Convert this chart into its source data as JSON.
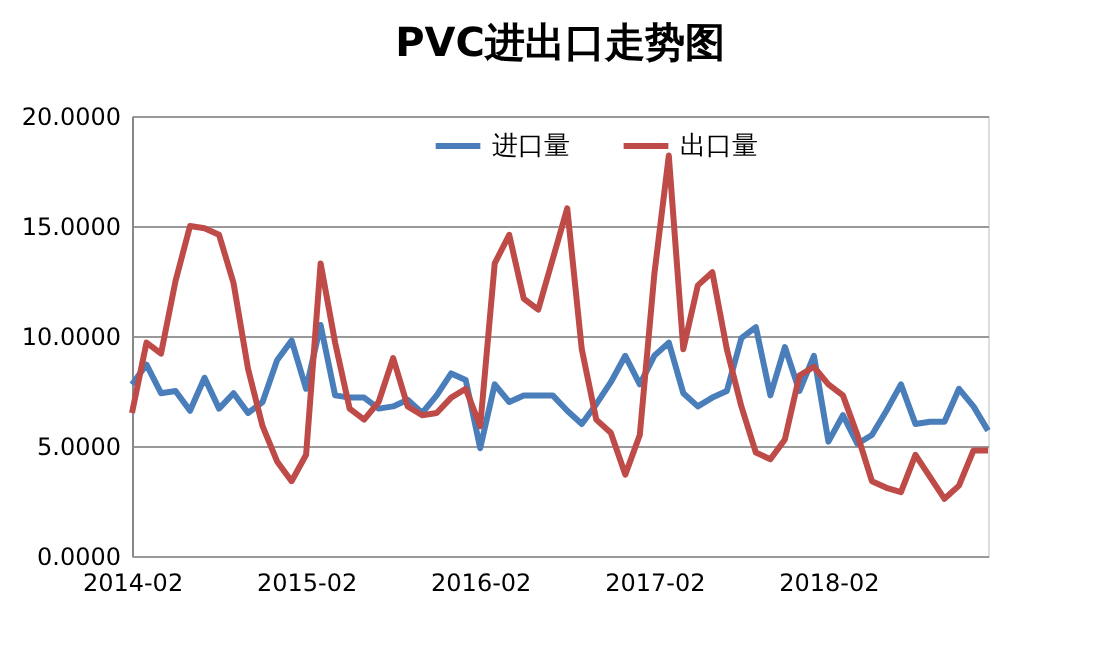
{
  "chart_data": {
    "type": "line",
    "title": "PVC进出口走势图",
    "categories": [
      "2014-02",
      null,
      null,
      null,
      null,
      null,
      null,
      null,
      null,
      null,
      null,
      null,
      "2015-02",
      null,
      null,
      null,
      null,
      null,
      null,
      null,
      null,
      null,
      null,
      null,
      "2016-02",
      null,
      null,
      null,
      null,
      null,
      null,
      null,
      null,
      null,
      null,
      null,
      "2017-02",
      null,
      null,
      null,
      null,
      null,
      null,
      null,
      null,
      null,
      null,
      null,
      "2018-02",
      null,
      null,
      null,
      null,
      null,
      null,
      null,
      null,
      null,
      null,
      null
    ],
    "series": [
      {
        "name": "进口量",
        "color": "#4a7ebb",
        "values": [
          7.8,
          8.7,
          7.4,
          7.5,
          6.6,
          8.1,
          6.7,
          7.4,
          6.5,
          7.0,
          8.9,
          9.8,
          7.6,
          10.5,
          7.3,
          7.2,
          7.2,
          6.7,
          6.8,
          7.1,
          6.5,
          7.3,
          8.3,
          8.0,
          4.9,
          7.8,
          7.0,
          7.3,
          7.3,
          7.3,
          6.6,
          6.0,
          6.9,
          7.9,
          9.1,
          7.8,
          9.1,
          9.7,
          7.4,
          6.8,
          7.2,
          7.5,
          9.9,
          10.4,
          7.3,
          9.5,
          7.5,
          9.1,
          5.2,
          6.4,
          5.1,
          5.5,
          6.6,
          7.8,
          6.0,
          6.1,
          6.1,
          7.6,
          6.8,
          5.7
        ]
      },
      {
        "name": "出口量",
        "color": "#be4b48",
        "values": [
          6.5,
          9.7,
          9.2,
          12.5,
          15.0,
          14.9,
          14.6,
          12.4,
          8.5,
          5.9,
          4.3,
          3.4,
          4.6,
          13.3,
          9.7,
          6.7,
          6.2,
          7.0,
          9.0,
          6.8,
          6.4,
          6.5,
          7.2,
          7.6,
          5.9,
          13.3,
          14.6,
          11.7,
          11.2,
          13.5,
          15.8,
          9.4,
          6.2,
          5.6,
          3.7,
          5.5,
          12.8,
          18.2,
          9.4,
          12.3,
          12.9,
          9.4,
          6.8,
          4.7,
          4.4,
          5.3,
          8.2,
          8.6,
          7.8,
          7.3,
          5.5,
          3.4,
          3.1,
          2.9,
          4.6,
          3.6,
          2.6,
          3.2,
          4.8,
          4.8
        ]
      }
    ],
    "ylim": [
      0,
      20
    ],
    "yticks": [
      {
        "value": 0,
        "label": "0.0000"
      },
      {
        "value": 5,
        "label": "5.0000"
      },
      {
        "value": 10,
        "label": "10.0000"
      },
      {
        "value": 15,
        "label": "15.0000"
      },
      {
        "value": 20,
        "label": "20.0000"
      }
    ],
    "grid": "y",
    "legend": "top",
    "line_style": "solid",
    "marker": "none"
  }
}
